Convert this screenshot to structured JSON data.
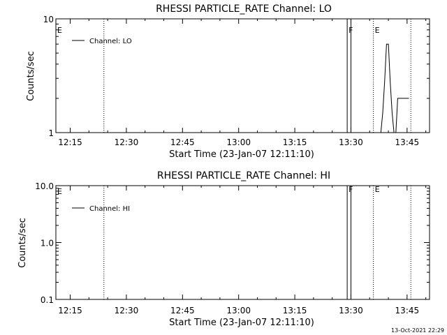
{
  "footer": {
    "timestamp": "13-Oct-2021 22:29"
  },
  "chart_data": [
    {
      "type": "line",
      "title": "RHESSI PARTICLE_RATE Channel: LO",
      "xlabel": "Start Time (23-Jan-07 12:11:10)",
      "ylabel": "Counts/sec",
      "y_scale": "log",
      "xlim": [
        "12:11:10",
        "13:51:00"
      ],
      "ylim": [
        1,
        10
      ],
      "grid": false,
      "legend_position": "top-left",
      "x_ticks": [
        "12:15",
        "12:30",
        "12:45",
        "13:00",
        "13:15",
        "13:30",
        "13:45"
      ],
      "y_ticks": [
        "1",
        "10"
      ],
      "series": [
        {
          "name": "Channel: LO",
          "x": [
            "13:38:00",
            "13:38:30",
            "13:39:00",
            "13:39:30",
            "13:40:00",
            "13:40:30",
            "13:41:00",
            "13:41:30",
            "13:42:00",
            "13:42:30",
            "13:43:30",
            "13:44:00",
            "13:45:30"
          ],
          "y": [
            1,
            1.5,
            2.8,
            6,
            6,
            2.8,
            1.5,
            1,
            1,
            2,
            2,
            2,
            2
          ]
        }
      ],
      "flag_lines": [
        {
          "time": "12:24:00",
          "label": "",
          "style": "dotted"
        },
        {
          "time": "13:29:00",
          "label": "F",
          "style": "solid"
        },
        {
          "time": "13:30:00",
          "label": "",
          "style": "solid"
        },
        {
          "time": "13:36:00",
          "label": "E",
          "style": "dotted"
        },
        {
          "time": "13:46:00",
          "label": "",
          "style": "dotted"
        }
      ],
      "corner_flag": "E"
    },
    {
      "type": "line",
      "title": "RHESSI PARTICLE_RATE Channel: HI",
      "xlabel": "Start Time (23-Jan-07 12:11:10)",
      "ylabel": "Counts/sec",
      "y_scale": "log",
      "xlim": [
        "12:11:10",
        "13:51:00"
      ],
      "ylim": [
        0.1,
        10
      ],
      "grid": false,
      "legend_position": "top-left",
      "x_ticks": [
        "12:15",
        "12:30",
        "12:45",
        "13:00",
        "13:15",
        "13:30",
        "13:45"
      ],
      "y_ticks": [
        "0.1",
        "1.0",
        "10.0"
      ],
      "series": [
        {
          "name": "Channel: HI",
          "x": [],
          "y": []
        }
      ],
      "flag_lines": [
        {
          "time": "12:24:00",
          "label": "",
          "style": "dotted"
        },
        {
          "time": "13:29:00",
          "label": "F",
          "style": "solid"
        },
        {
          "time": "13:30:00",
          "label": "",
          "style": "solid"
        },
        {
          "time": "13:36:00",
          "label": "E",
          "style": "dotted"
        },
        {
          "time": "13:46:00",
          "label": "",
          "style": "dotted"
        }
      ],
      "corner_flag": "E"
    }
  ]
}
